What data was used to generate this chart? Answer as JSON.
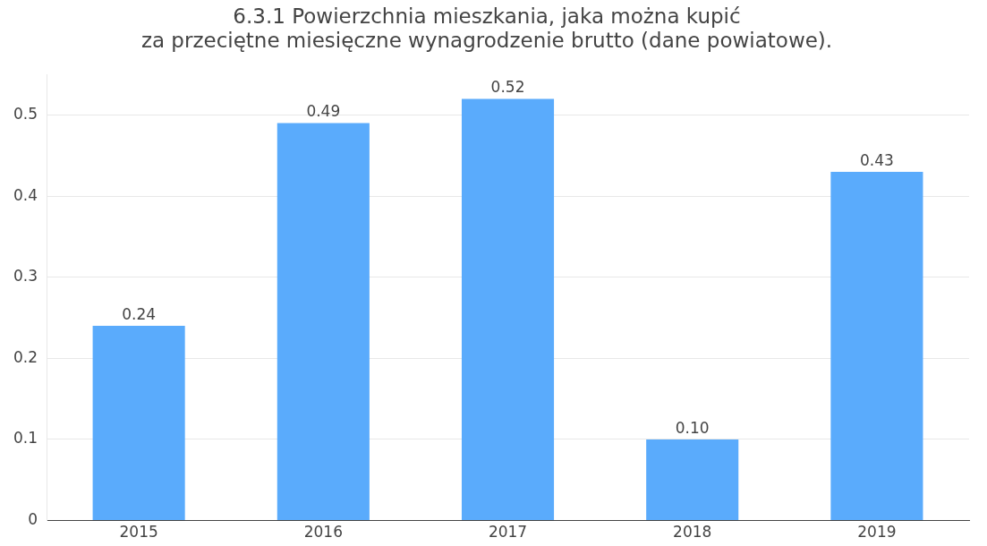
{
  "chart_data": {
    "type": "bar",
    "title": "6.3.1 Powierzchnia mieszkania, jaka można kupić\nza przeciętne miesięczne wynagrodzenie brutto (dane powiatowe).",
    "categories": [
      "2015",
      "2016",
      "2017",
      "2018",
      "2019"
    ],
    "values": [
      0.24,
      0.49,
      0.52,
      0.1,
      0.43
    ],
    "value_labels": [
      "0.24",
      "0.49",
      "0.52",
      "0.10",
      "0.43"
    ],
    "color": "#5aabfc",
    "ylim": [
      0,
      0.55
    ],
    "yticks": [
      0,
      0.1,
      0.2,
      0.3,
      0.4,
      0.5
    ],
    "grid": "y",
    "legend": false
  }
}
